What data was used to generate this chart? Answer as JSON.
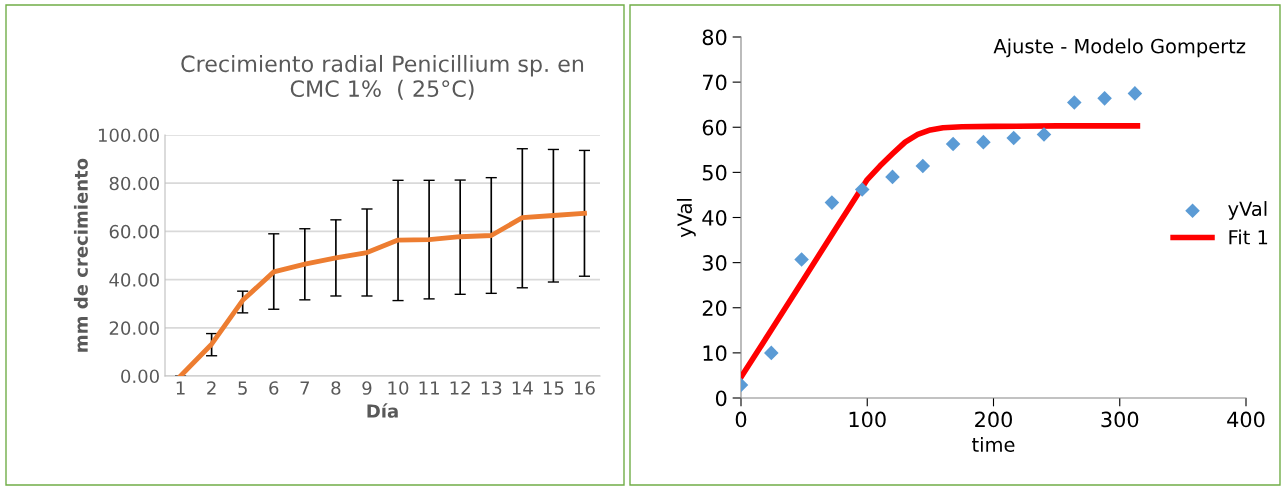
{
  "chart_data": [
    {
      "type": "line",
      "title": "Crecimiento radial Penicillium sp. en\nCMC 1%  ( 25°C)",
      "xlabel": "Día",
      "ylabel": "mm de crecimiento",
      "categories": [
        "1",
        "2",
        "5",
        "6",
        "7",
        "8",
        "9",
        "10",
        "11",
        "12",
        "13",
        "14",
        "15",
        "16"
      ],
      "series": [
        {
          "color": "#ed7d31",
          "values": [
            0,
            13.2,
            31.4,
            43.2,
            46.4,
            49.0,
            51.2,
            56.4,
            56.6,
            57.8,
            58.3,
            65.7,
            66.6,
            67.5
          ],
          "errors": [
            0,
            [
              8.4,
              17.6
            ],
            [
              26.2,
              35.2
            ],
            [
              27.7,
              59.0
            ],
            [
              31.6,
              61.1
            ],
            [
              33.2,
              64.8
            ],
            [
              33.2,
              69.3
            ],
            [
              31.3,
              81.2
            ],
            [
              32.0,
              81.2
            ],
            [
              33.9,
              81.3
            ],
            [
              34.3,
              82.3
            ],
            [
              36.6,
              94.3
            ],
            [
              39.0,
              94.0
            ],
            [
              41.4,
              93.6
            ]
          ]
        }
      ],
      "ylim": [
        0,
        100
      ],
      "yticks": [
        {
          "value": 0,
          "label": "0.00"
        },
        {
          "value": 20,
          "label": "20.00"
        },
        {
          "value": 40,
          "label": "40.00"
        },
        {
          "value": 60,
          "label": "60.00"
        },
        {
          "value": 80,
          "label": "80.00"
        },
        {
          "value": 100,
          "label": "100.00"
        }
      ],
      "grid": "y",
      "marker": "none",
      "line_style": "solid"
    },
    {
      "type": "scatter",
      "title": "Ajuste - Modelo Gompertz",
      "xlabel": "time",
      "ylabel": "yVal",
      "series": [
        {
          "name": "yVal",
          "type": "scatter",
          "color": "#5b9bd5",
          "marker": "diamond",
          "x": [
            0,
            24,
            48,
            72,
            96,
            120,
            144,
            168,
            192,
            216,
            240,
            264,
            288,
            312
          ],
          "values": [
            2.9,
            10.0,
            30.7,
            43.3,
            46.2,
            49.0,
            51.4,
            56.3,
            56.7,
            57.6,
            58.4,
            65.5,
            66.4,
            67.5
          ]
        },
        {
          "name": "Fit 1",
          "type": "line",
          "color": "#ff0000",
          "line_style": "solid",
          "x": [
            0,
            25,
            50,
            75,
            100,
            110,
            120,
            130,
            140,
            150,
            160,
            175,
            200,
            250,
            314
          ],
          "values": [
            4.6,
            15.5,
            26.5,
            37.5,
            48.4,
            51.4,
            54.1,
            56.7,
            58.4,
            59.4,
            59.9,
            60.1,
            60.2,
            60.3,
            60.3
          ]
        }
      ],
      "xlim": [
        0,
        400
      ],
      "xticks": [
        0,
        100,
        200,
        300,
        400
      ],
      "ylim": [
        0,
        80
      ],
      "yticks": [
        0,
        10,
        20,
        30,
        40,
        50,
        60,
        70,
        80
      ],
      "grid": false,
      "legend": "right"
    }
  ]
}
